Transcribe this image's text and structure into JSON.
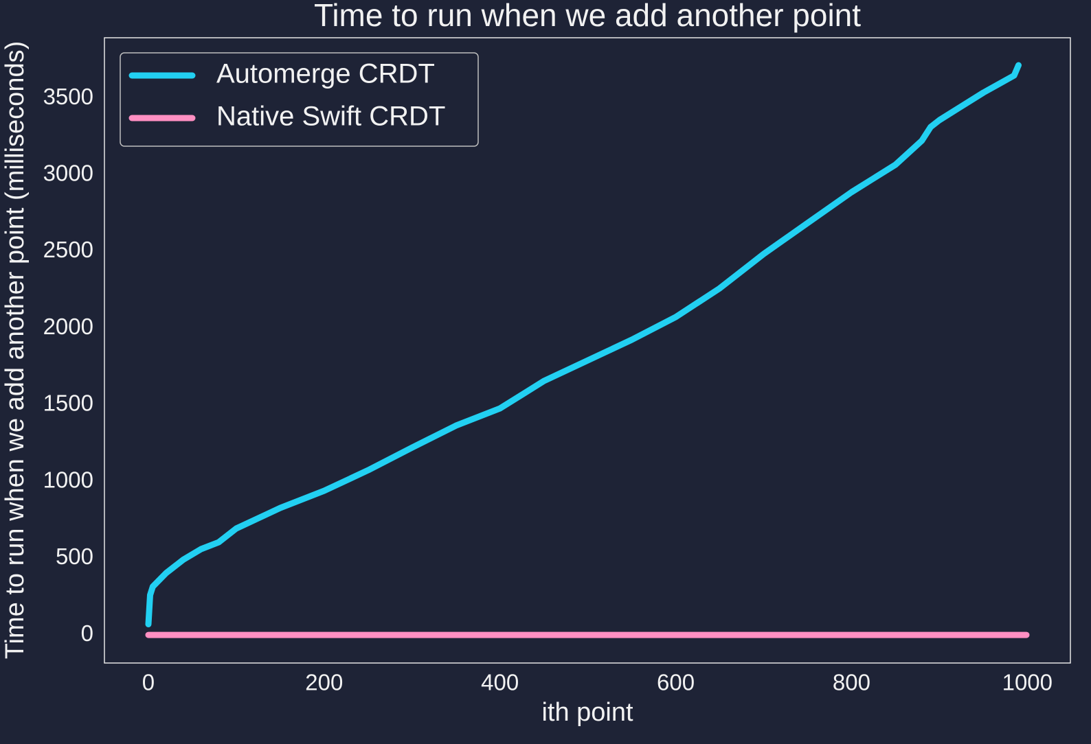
{
  "chart_data": {
    "type": "line",
    "title": "Time to run when we add another point",
    "x_label": "ith point",
    "y_label": "Time to run when we add another point (milliseconds)",
    "xlim": [
      -50,
      1049
    ],
    "ylim": [
      -183,
      3894
    ],
    "xticks": [
      0,
      200,
      400,
      600,
      800,
      1000
    ],
    "yticks": [
      0,
      500,
      1000,
      1500,
      2000,
      2500,
      3000,
      3500
    ],
    "grid": false,
    "legend_position": "upper-left",
    "series": [
      {
        "name": "Automerge CRDT",
        "color": "#22d0f2",
        "x": [
          0,
          2,
          5,
          20,
          40,
          60,
          80,
          100,
          150,
          200,
          250,
          300,
          350,
          400,
          450,
          500,
          550,
          600,
          650,
          700,
          750,
          800,
          850,
          880,
          890,
          900,
          950,
          985,
          990
        ],
        "values": [
          70,
          260,
          315,
          403,
          492,
          560,
          604,
          694,
          828,
          940,
          1074,
          1222,
          1365,
          1477,
          1656,
          1790,
          1925,
          2073,
          2260,
          2484,
          2686,
          2887,
          3066,
          3223,
          3312,
          3357,
          3536,
          3648,
          3715
        ]
      },
      {
        "name": "Native Swift CRDT",
        "color": "#ff8fc2",
        "x": [
          0,
          999
        ],
        "values": [
          0,
          0
        ]
      }
    ]
  }
}
